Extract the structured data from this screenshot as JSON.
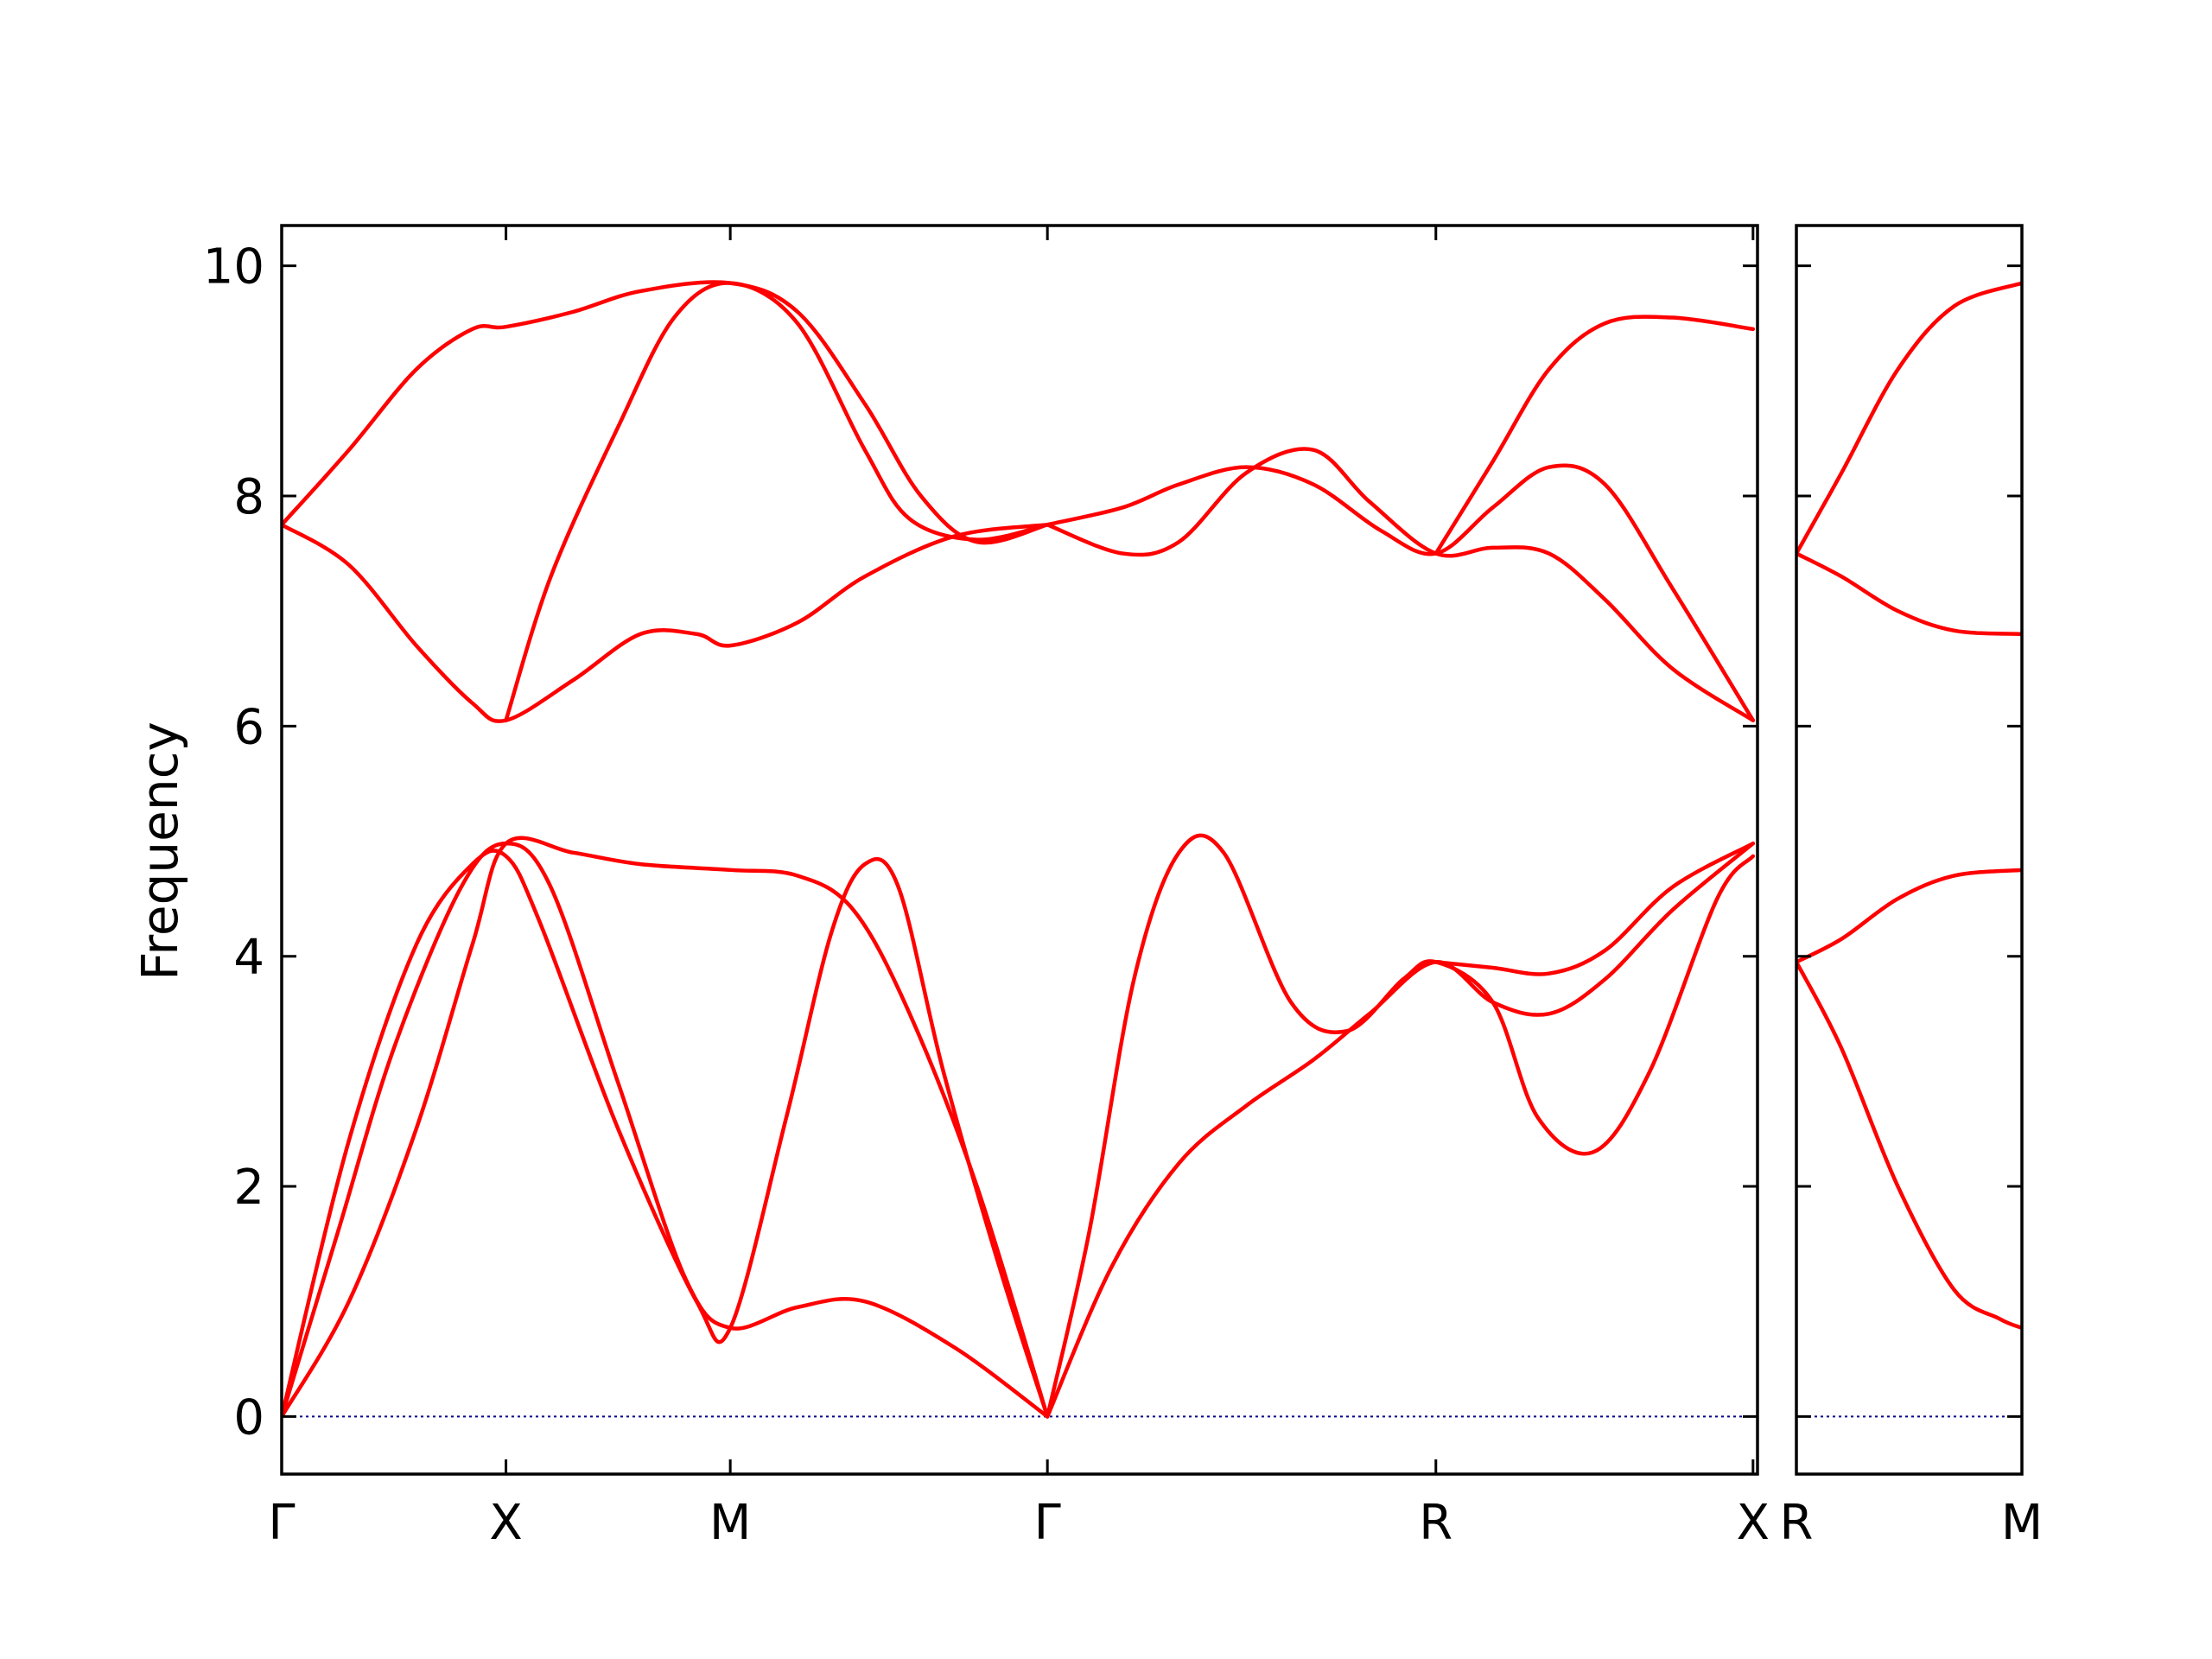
{
  "chart_data": {
    "type": "line",
    "ylabel": "Frequency",
    "ylim": [
      -0.5,
      10.35
    ],
    "y_ticks": [
      "0",
      "2",
      "4",
      "6",
      "8",
      "10"
    ],
    "colors": {
      "bands": "#ff0000",
      "zero_line": "#00008b",
      "axes": "#000000"
    },
    "grid": false,
    "panels": [
      {
        "name": "main",
        "xlim": [
          0,
          6.58
        ],
        "x_ticks": [
          {
            "x": 0,
            "label": "Γ"
          },
          {
            "x": 1.0,
            "label": "X"
          },
          {
            "x": 2.0,
            "label": "M"
          },
          {
            "x": 3.414,
            "label": "Γ"
          },
          {
            "x": 5.146,
            "label": "R"
          },
          {
            "x": 6.56,
            "label": "X"
          }
        ],
        "bands": [
          [
            [
              0,
              0
            ],
            [
              0.3,
              2.4
            ],
            [
              0.6,
              4.1
            ],
            [
              0.85,
              4.8
            ],
            [
              1.0,
              4.87
            ],
            [
              1.15,
              4.3
            ],
            [
              1.5,
              2.5
            ],
            [
              1.85,
              1.0
            ],
            [
              2.0,
              0.77
            ],
            [
              2.25,
              2.6
            ],
            [
              2.45,
              4.2
            ],
            [
              2.6,
              4.8
            ],
            [
              2.75,
              4.6
            ],
            [
              2.95,
              3.0
            ],
            [
              3.2,
              1.3
            ],
            [
              3.414,
              0
            ]
          ],
          [
            [
              0,
              0
            ],
            [
              0.25,
              1.6
            ],
            [
              0.5,
              3.2
            ],
            [
              0.8,
              4.6
            ],
            [
              1.0,
              4.98
            ],
            [
              1.2,
              4.6
            ],
            [
              1.5,
              2.9
            ],
            [
              1.8,
              1.2
            ],
            [
              2.0,
              0.77
            ],
            [
              2.3,
              0.95
            ],
            [
              2.6,
              1.0
            ],
            [
              3.0,
              0.6
            ],
            [
              3.414,
              0
            ]
          ],
          [
            [
              0,
              0
            ],
            [
              0.3,
              1.0
            ],
            [
              0.6,
              2.5
            ],
            [
              0.85,
              4.1
            ],
            [
              1.0,
              4.98
            ],
            [
              1.3,
              4.9
            ],
            [
              1.6,
              4.8
            ],
            [
              2.0,
              4.75
            ],
            [
              2.3,
              4.7
            ],
            [
              2.55,
              4.4
            ],
            [
              2.8,
              3.5
            ],
            [
              3.1,
              2.0
            ],
            [
              3.414,
              0
            ]
          ],
          [
            [
              3.414,
              0
            ],
            [
              3.6,
              1.6
            ],
            [
              3.8,
              3.8
            ],
            [
              4.0,
              4.9
            ],
            [
              4.2,
              4.9
            ],
            [
              4.5,
              3.6
            ],
            [
              4.75,
              3.35
            ],
            [
              5.0,
              3.8
            ],
            [
              5.146,
              3.95
            ],
            [
              5.4,
              3.6
            ],
            [
              5.6,
              2.6
            ],
            [
              5.85,
              2.3
            ],
            [
              6.1,
              3.0
            ],
            [
              6.4,
              4.5
            ],
            [
              6.56,
              4.87
            ]
          ],
          [
            [
              3.414,
              0
            ],
            [
              3.7,
              1.3
            ],
            [
              4.0,
              2.2
            ],
            [
              4.3,
              2.7
            ],
            [
              4.6,
              3.1
            ],
            [
              4.85,
              3.5
            ],
            [
              5.146,
              3.95
            ],
            [
              5.4,
              3.6
            ],
            [
              5.65,
              3.5
            ],
            [
              5.9,
              3.8
            ],
            [
              6.2,
              4.4
            ],
            [
              6.56,
              4.98
            ]
          ],
          [
            [
              5.146,
              3.95
            ],
            [
              5.4,
              3.9
            ],
            [
              5.65,
              3.85
            ],
            [
              5.9,
              4.05
            ],
            [
              6.2,
              4.6
            ],
            [
              6.56,
              4.98
            ]
          ],
          [
            [
              0,
              7.75
            ],
            [
              0.3,
              7.4
            ],
            [
              0.6,
              6.7
            ],
            [
              0.85,
              6.2
            ],
            [
              1.0,
              6.05
            ],
            [
              1.3,
              6.4
            ],
            [
              1.6,
              6.8
            ],
            [
              1.85,
              6.8
            ],
            [
              2.0,
              6.7
            ],
            [
              2.3,
              6.9
            ],
            [
              2.6,
              7.3
            ],
            [
              3.0,
              7.65
            ],
            [
              3.414,
              7.75
            ]
          ],
          [
            [
              0,
              7.75
            ],
            [
              0.3,
              8.4
            ],
            [
              0.6,
              9.1
            ],
            [
              0.85,
              9.45
            ],
            [
              1.0,
              9.47
            ],
            [
              1.3,
              9.6
            ],
            [
              1.6,
              9.78
            ],
            [
              2.0,
              9.85
            ],
            [
              2.3,
              9.6
            ],
            [
              2.6,
              8.8
            ],
            [
              2.85,
              8.0
            ],
            [
              3.1,
              7.6
            ],
            [
              3.414,
              7.75
            ]
          ],
          [
            [
              1.0,
              6.05
            ],
            [
              1.2,
              7.3
            ],
            [
              1.5,
              8.6
            ],
            [
              1.75,
              9.55
            ],
            [
              2.0,
              9.85
            ],
            [
              2.3,
              9.5
            ],
            [
              2.6,
              8.4
            ],
            [
              2.8,
              7.8
            ],
            [
              3.1,
              7.62
            ],
            [
              3.414,
              7.75
            ]
          ],
          [
            [
              3.414,
              7.75
            ],
            [
              3.75,
              7.5
            ],
            [
              4.0,
              7.6
            ],
            [
              4.3,
              8.2
            ],
            [
              4.6,
              8.4
            ],
            [
              4.85,
              7.95
            ],
            [
              5.146,
              7.5
            ],
            [
              5.4,
              7.55
            ],
            [
              5.65,
              7.5
            ],
            [
              5.9,
              7.1
            ],
            [
              6.2,
              6.5
            ],
            [
              6.56,
              6.05
            ]
          ],
          [
            [
              3.414,
              7.75
            ],
            [
              3.75,
              7.9
            ],
            [
              4.0,
              8.1
            ],
            [
              4.3,
              8.25
            ],
            [
              4.6,
              8.1
            ],
            [
              4.9,
              7.7
            ],
            [
              5.146,
              7.5
            ],
            [
              5.4,
              7.9
            ],
            [
              5.65,
              8.25
            ],
            [
              5.9,
              8.1
            ],
            [
              6.2,
              7.2
            ],
            [
              6.56,
              6.05
            ]
          ],
          [
            [
              5.146,
              7.5
            ],
            [
              5.4,
              8.3
            ],
            [
              5.65,
              9.1
            ],
            [
              5.9,
              9.5
            ],
            [
              6.2,
              9.55
            ],
            [
              6.56,
              9.45
            ]
          ]
        ]
      },
      {
        "name": "side",
        "xlim": [
          0,
          1.0
        ],
        "x_ticks": [
          {
            "x": 0,
            "label": "R"
          },
          {
            "x": 1.0,
            "label": "M"
          }
        ],
        "bands": [
          [
            [
              0,
              3.95
            ],
            [
              0.2,
              3.2
            ],
            [
              0.45,
              2.0
            ],
            [
              0.7,
              1.1
            ],
            [
              0.9,
              0.85
            ],
            [
              1.0,
              0.77
            ]
          ],
          [
            [
              0,
              3.95
            ],
            [
              0.2,
              4.15
            ],
            [
              0.45,
              4.5
            ],
            [
              0.7,
              4.7
            ],
            [
              1.0,
              4.75
            ]
          ],
          [
            [
              0,
              7.5
            ],
            [
              0.2,
              7.3
            ],
            [
              0.45,
              7.0
            ],
            [
              0.7,
              6.83
            ],
            [
              1.0,
              6.8
            ]
          ],
          [
            [
              0,
              7.5
            ],
            [
              0.2,
              8.2
            ],
            [
              0.45,
              9.1
            ],
            [
              0.7,
              9.65
            ],
            [
              1.0,
              9.85
            ]
          ]
        ]
      }
    ]
  }
}
